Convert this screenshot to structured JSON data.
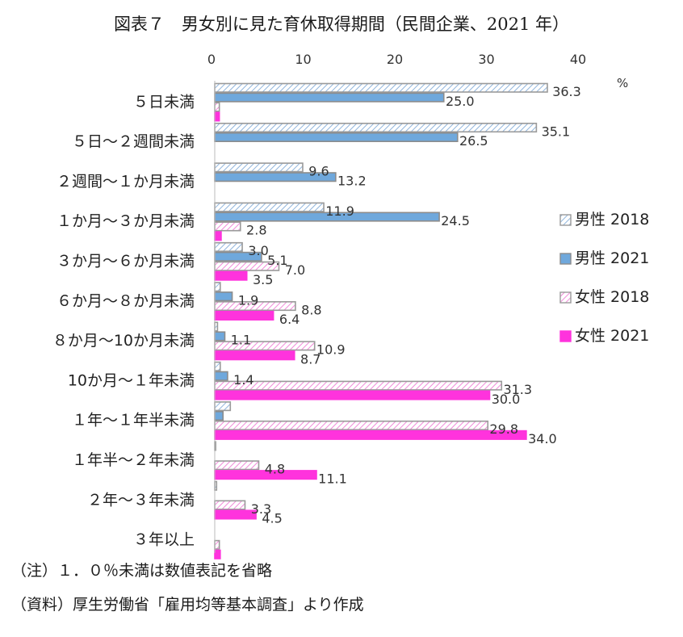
{
  "chart_data": {
    "type": "bar",
    "orientation": "horizontal",
    "title": "図表７　男女別に見た育休取得期間（民間企業、2021 年）",
    "unit_label": "%",
    "xlim": [
      0,
      40
    ],
    "x_ticks": [
      "0",
      "10",
      "20",
      "30",
      "40"
    ],
    "grid": false,
    "legend_position": "right",
    "categories": [
      "５日未満",
      "５日～２週間未満",
      "２週間～１か月未満",
      "１か月～３か月未満",
      "３か月～６か月未満",
      "６か月～８か月未満",
      "８か月～10か月未満",
      "10か月～１年未満",
      "１年～１年半未満",
      "１年半～２年未満",
      "２年～３年未満",
      "３年以上"
    ],
    "series": [
      {
        "name": "男性 2018",
        "values": [
          36.3,
          35.1,
          9.6,
          11.9,
          3.0,
          0.6,
          0.3,
          0.6,
          1.7,
          0.1,
          0.2,
          0.0
        ],
        "labels": [
          "36.3",
          "35.1",
          "9.6",
          "11.9",
          "3.0",
          "",
          "",
          "",
          "",
          "",
          "",
          ""
        ],
        "color": "#c9dcf0",
        "pattern": "hatch"
      },
      {
        "name": "男性 2021",
        "values": [
          25.0,
          26.5,
          13.2,
          24.5,
          5.1,
          1.9,
          1.1,
          1.4,
          0.9,
          0.0,
          0.0,
          0.0
        ],
        "labels": [
          "25.0",
          "26.5",
          "13.2",
          "24.5",
          "5.1",
          "1.9",
          "1.1",
          "1.4",
          "",
          "",
          "",
          ""
        ],
        "color": "#6fa8dc",
        "pattern": "solid"
      },
      {
        "name": "女性 2018",
        "values": [
          0.5,
          0.0,
          0.0,
          2.8,
          7.0,
          8.8,
          10.9,
          31.3,
          29.8,
          4.8,
          3.3,
          0.5
        ],
        "labels": [
          "",
          "",
          "",
          "2.8",
          "7.0",
          "8.8",
          "10.9",
          "31.3",
          "29.8",
          "4.8",
          "3.3",
          ""
        ],
        "color": "#f4b6e6",
        "pattern": "hatch"
      },
      {
        "name": "女性 2021",
        "values": [
          0.5,
          0.0,
          0.0,
          0.7,
          3.5,
          6.4,
          8.7,
          30.0,
          34.0,
          11.1,
          4.5,
          0.6
        ],
        "labels": [
          "",
          "",
          "",
          "",
          "3.5",
          "6.4",
          "8.7",
          "30.0",
          "34.0",
          "11.1",
          "4.5",
          ""
        ],
        "color": "#ff33dd",
        "pattern": "solid"
      }
    ]
  },
  "notes": {
    "note1": "（注）１．０％未満は数値表記を省略",
    "note2": "（資料）厚生労働省「雇用均等基本調査」より作成"
  }
}
